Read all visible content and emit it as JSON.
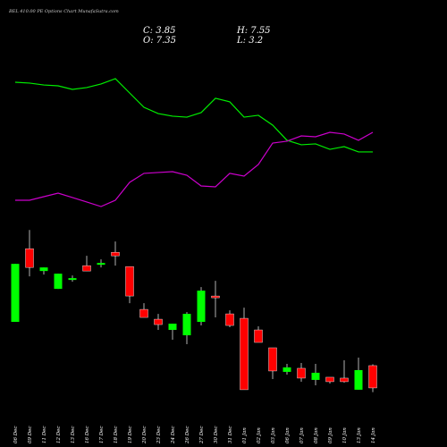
{
  "chart_data": [
    {
      "type": "line",
      "ylim": [
        0,
        100
      ],
      "series": [
        {
          "color": "#00ee00",
          "values": [
            92.5,
            91.9,
            90.6,
            90,
            87.5,
            88.8,
            91.3,
            95,
            85,
            75,
            70.6,
            68.8,
            68.1,
            71.3,
            81.3,
            78.8,
            68.1,
            69.4,
            62.5,
            51.9,
            48.8,
            49.4,
            45.6,
            47.5,
            43.8,
            43.8
          ]
        },
        {
          "color": "#cc00cc",
          "values": [
            10,
            10,
            12.5,
            15,
            11.9,
            8.8,
            5.6,
            10,
            22.5,
            28.8,
            29.4,
            30,
            27.5,
            20,
            19.4,
            28.8,
            26.9,
            35,
            50,
            51.3,
            55,
            54.4,
            57.5,
            56.3,
            51.9,
            57.5
          ]
        }
      ]
    },
    {
      "type": "candlestick",
      "title": "BEL 410.00 PE Options Chart MunafaSutra.com",
      "info_labels": [
        "C:",
        "H:",
        "O:",
        "L:"
      ],
      "categories": [
        "06 Dec",
        "09 Dec",
        "11 Dec",
        "12 Dec",
        "13 Dec",
        "16 Dec",
        "17 Dec",
        "18 Dec",
        "19 Dec",
        "20 Dec",
        "23 Dec",
        "24 Dec",
        "26 Dec",
        "27 Dec",
        "30 Dec",
        "31 Dec",
        "01 Jan",
        "02 Jan",
        "03 Jan",
        "06 Jan",
        "07 Jan",
        "08 Jan",
        "09 Jan",
        "10 Jan",
        "13 Jan",
        "14 Jan"
      ],
      "open": [
        14.21,
        25.69,
        22.19,
        19.39,
        20.79,
        23.03,
        23.17,
        25.13,
        22.89,
        16.17,
        14.63,
        12.95,
        12.11,
        14.21,
        18.27,
        15.47,
        14.77,
        12.95,
        10.15,
        6.37,
        6.93,
        5.11,
        5.53,
        5.39,
        3.57,
        7.35
      ],
      "high": [
        23.31,
        28.63,
        22.75,
        21.77,
        21.49,
        24.57,
        24.01,
        26.81,
        22.89,
        17.15,
        15.47,
        13.93,
        15.75,
        19.67,
        20.65,
        16.03,
        16.45,
        13.51,
        10.15,
        7.63,
        7.77,
        7.63,
        5.53,
        8.19,
        8.61,
        7.55
      ],
      "low": [
        14.21,
        21.35,
        21.63,
        19.39,
        20.51,
        22.19,
        22.75,
        23.03,
        17.15,
        14.91,
        12.95,
        11.41,
        10.71,
        13.65,
        14.91,
        13.37,
        3.57,
        10.99,
        5.25,
        5.95,
        4.83,
        4.27,
        4.55,
        4.69,
        3.57,
        3.2
      ],
      "close": [
        23.31,
        22.75,
        22.75,
        21.77,
        21.07,
        22.19,
        23.45,
        24.57,
        18.27,
        14.91,
        13.79,
        13.93,
        15.47,
        19.11,
        17.99,
        13.65,
        3.57,
        10.99,
        6.51,
        7.07,
        5.39,
        6.23,
        4.83,
        4.83,
        6.65,
        3.85
      ],
      "ylim": [
        3,
        29.5
      ],
      "up_color": "#00ff00",
      "down_color": "#ff0000"
    }
  ]
}
